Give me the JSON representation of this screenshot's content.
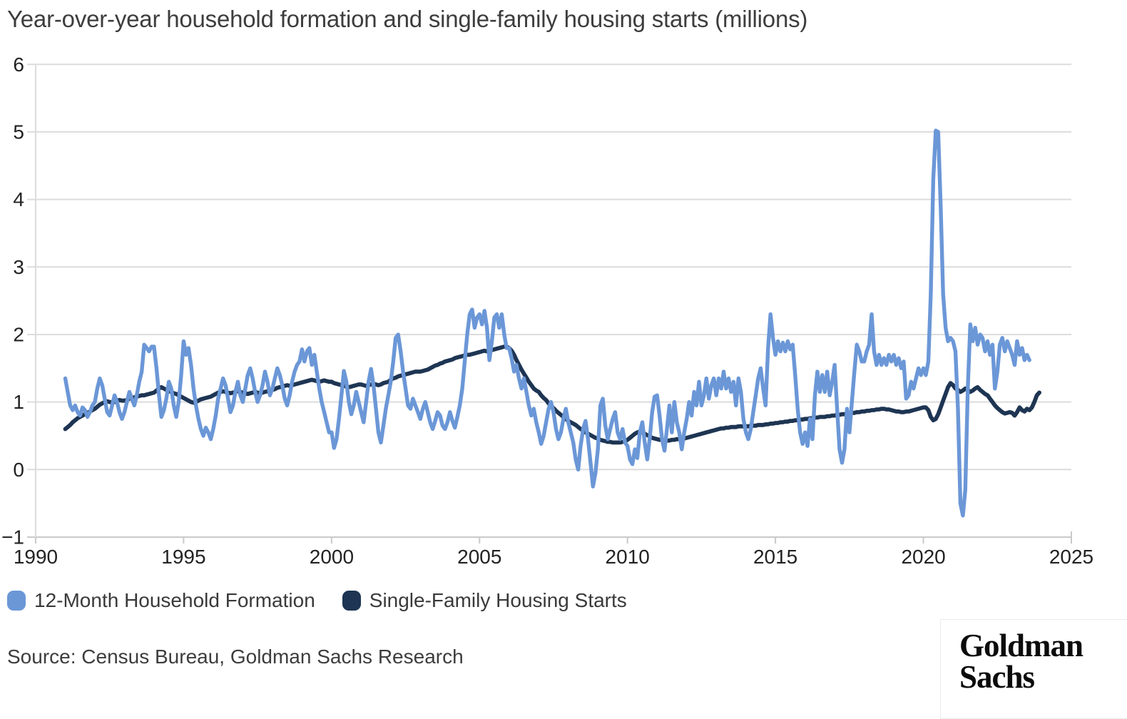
{
  "title": "Year-over-year household formation and single-family housing starts (millions)",
  "source": "Source: Census Bureau, Goldman Sachs Research",
  "logo": {
    "line1": "Goldman",
    "line2": "Sachs"
  },
  "legend": {
    "items": [
      {
        "label": "12-Month Household Formation",
        "color": "#6B97D7"
      },
      {
        "label": "Single-Family Housing Starts",
        "color": "#1E3553"
      }
    ]
  },
  "colors": {
    "grid": "#dcdcdc",
    "axis": "#c9c9c9",
    "tick_label": "#222222",
    "title_text": "#3d3d3d",
    "household_formation": "#6B97D7",
    "housing_starts": "#1E3553"
  },
  "chart_data": {
    "type": "line",
    "title": "Year-over-year household formation and single-family housing starts (millions)",
    "xlabel": "",
    "ylabel": "",
    "xlim": [
      1990,
      2025
    ],
    "ylim": [
      -1,
      6
    ],
    "grid": "horizontal",
    "legend_position": "bottom",
    "x_axis": {
      "ticks": [
        1990,
        1995,
        2000,
        2005,
        2010,
        2015,
        2020,
        2025
      ]
    },
    "y_axis": {
      "ticks": [
        6,
        5,
        4,
        3,
        2,
        1,
        0,
        -1
      ]
    },
    "x_start": 1991.0,
    "x_step": 0.0833333,
    "series": [
      {
        "name": "12-Month Household Formation",
        "color": "#6B97D7",
        "width": 5.4,
        "values": [
          1.35,
          1.15,
          0.95,
          0.88,
          0.95,
          0.85,
          0.8,
          0.92,
          0.88,
          0.78,
          0.85,
          0.95,
          1.0,
          1.2,
          1.35,
          1.25,
          1.05,
          0.85,
          0.8,
          0.95,
          1.1,
          1.0,
          0.85,
          0.75,
          0.85,
          1.0,
          1.15,
          1.05,
          0.95,
          1.1,
          1.3,
          1.45,
          1.85,
          1.8,
          1.75,
          1.82,
          1.82,
          1.5,
          1.1,
          0.78,
          0.88,
          1.05,
          1.3,
          1.2,
          0.95,
          0.78,
          1.0,
          1.4,
          1.9,
          1.7,
          1.8,
          1.55,
          1.2,
          0.95,
          0.75,
          0.6,
          0.5,
          0.62,
          0.55,
          0.45,
          0.6,
          0.8,
          1.05,
          1.2,
          1.35,
          1.25,
          1.05,
          0.85,
          0.95,
          1.15,
          1.3,
          1.1,
          1.0,
          1.2,
          1.4,
          1.5,
          1.35,
          1.15,
          1.0,
          1.1,
          1.25,
          1.45,
          1.3,
          1.1,
          1.2,
          1.35,
          1.5,
          1.4,
          1.25,
          1.05,
          0.95,
          1.1,
          1.3,
          1.45,
          1.55,
          1.6,
          1.78,
          1.6,
          1.75,
          1.8,
          1.55,
          1.7,
          1.45,
          1.2,
          1.0,
          0.85,
          0.7,
          0.55,
          0.55,
          0.32,
          0.45,
          0.75,
          1.1,
          1.46,
          1.3,
          1.0,
          0.82,
          0.95,
          1.15,
          1.0,
          0.85,
          0.7,
          1.0,
          1.3,
          1.49,
          1.25,
          0.9,
          0.55,
          0.4,
          0.65,
          0.9,
          1.1,
          1.3,
          1.6,
          1.95,
          2.0,
          1.75,
          1.45,
          1.2,
          0.95,
          0.9,
          1.05,
          0.95,
          0.85,
          0.75,
          0.9,
          1.0,
          0.85,
          0.7,
          0.6,
          0.72,
          0.85,
          0.8,
          0.65,
          0.6,
          0.7,
          0.85,
          0.72,
          0.62,
          0.78,
          0.95,
          1.2,
          1.6,
          2.0,
          2.3,
          2.37,
          2.1,
          2.25,
          2.3,
          2.15,
          2.35,
          2.1,
          1.62,
          1.9,
          2.25,
          2.3,
          2.1,
          2.3,
          2.0,
          1.8,
          1.8,
          1.65,
          1.45,
          1.55,
          1.35,
          1.2,
          1.35,
          1.15,
          0.95,
          0.8,
          0.9,
          0.7,
          0.55,
          0.38,
          0.5,
          0.7,
          0.9,
          1.0,
          0.85,
          0.6,
          0.45,
          0.55,
          0.75,
          0.9,
          0.7,
          0.55,
          0.4,
          0.15,
          0.0,
          0.35,
          0.6,
          0.72,
          0.45,
          0.1,
          -0.25,
          -0.05,
          0.3,
          0.95,
          1.05,
          0.65,
          0.45,
          0.6,
          0.75,
          0.85,
          0.55,
          0.45,
          0.6,
          0.4,
          0.35,
          0.15,
          0.08,
          0.3,
          0.17,
          0.55,
          0.7,
          0.4,
          0.15,
          0.45,
          0.85,
          1.08,
          1.1,
          0.8,
          0.45,
          0.28,
          0.6,
          0.95,
          0.55,
          1.0,
          0.7,
          0.55,
          0.3,
          0.55,
          0.75,
          1.0,
          0.8,
          1.15,
          0.95,
          1.3,
          0.95,
          1.1,
          1.35,
          1.05,
          1.25,
          1.35,
          1.1,
          1.35,
          1.2,
          1.45,
          1.2,
          1.35,
          1.15,
          1.3,
          0.95,
          1.35,
          1.15,
          0.75,
          0.55,
          0.45,
          0.6,
          0.85,
          1.1,
          1.35,
          1.5,
          1.2,
          0.95,
          1.8,
          2.3,
          1.95,
          1.7,
          1.9,
          1.75,
          1.88,
          1.75,
          1.9,
          1.78,
          1.85,
          1.4,
          0.9,
          0.55,
          0.38,
          0.55,
          0.35,
          0.75,
          0.45,
          1.1,
          1.45,
          1.15,
          1.4,
          1.15,
          1.45,
          1.1,
          1.3,
          1.55,
          0.9,
          0.3,
          0.1,
          0.3,
          0.9,
          0.55,
          1.0,
          1.45,
          1.85,
          1.75,
          1.6,
          1.6,
          1.75,
          1.85,
          2.3,
          1.75,
          1.55,
          1.7,
          1.55,
          1.65,
          1.55,
          1.7,
          1.6,
          1.7,
          1.55,
          1.65,
          1.5,
          1.6,
          1.05,
          1.1,
          1.3,
          1.2,
          1.35,
          1.5,
          1.4,
          1.5,
          1.4,
          1.6,
          2.6,
          4.3,
          5.02,
          5.0,
          3.9,
          2.6,
          2.1,
          1.9,
          1.95,
          1.9,
          1.75,
          0.9,
          -0.5,
          -0.68,
          -0.3,
          1.2,
          2.15,
          1.9,
          2.1,
          1.85,
          2.0,
          1.95,
          1.75,
          1.9,
          1.7,
          1.85,
          1.2,
          1.45,
          1.85,
          1.95,
          1.75,
          1.9,
          1.8,
          1.7,
          1.55,
          1.9,
          1.7,
          1.8,
          1.62,
          1.7,
          1.62
        ]
      },
      {
        "name": "Single-Family Housing Starts",
        "color": "#1E3553",
        "width": 5.8,
        "values": [
          0.6,
          0.63,
          0.66,
          0.7,
          0.73,
          0.76,
          0.78,
          0.8,
          0.82,
          0.84,
          0.86,
          0.88,
          0.9,
          0.93,
          0.96,
          0.98,
          1.0,
          1.01,
          1.0,
          0.99,
          1.0,
          1.02,
          1.03,
          1.02,
          1.02,
          1.03,
          1.05,
          1.06,
          1.07,
          1.08,
          1.09,
          1.1,
          1.1,
          1.11,
          1.12,
          1.13,
          1.14,
          1.17,
          1.2,
          1.22,
          1.2,
          1.18,
          1.16,
          1.15,
          1.13,
          1.12,
          1.1,
          1.08,
          1.06,
          1.04,
          1.02,
          1.0,
          0.99,
          1.0,
          1.02,
          1.04,
          1.05,
          1.06,
          1.07,
          1.08,
          1.1,
          1.12,
          1.14,
          1.15,
          1.16,
          1.15,
          1.14,
          1.13,
          1.14,
          1.15,
          1.16,
          1.15,
          1.14,
          1.13,
          1.12,
          1.13,
          1.14,
          1.15,
          1.14,
          1.13,
          1.14,
          1.15,
          1.16,
          1.17,
          1.18,
          1.19,
          1.21,
          1.22,
          1.23,
          1.24,
          1.25,
          1.24,
          1.25,
          1.26,
          1.27,
          1.28,
          1.29,
          1.3,
          1.31,
          1.32,
          1.33,
          1.32,
          1.31,
          1.3,
          1.31,
          1.32,
          1.31,
          1.3,
          1.3,
          1.28,
          1.27,
          1.26,
          1.25,
          1.24,
          1.23,
          1.22,
          1.23,
          1.24,
          1.25,
          1.26,
          1.26,
          1.25,
          1.24,
          1.25,
          1.26,
          1.27,
          1.26,
          1.25,
          1.26,
          1.28,
          1.29,
          1.3,
          1.33,
          1.35,
          1.36,
          1.38,
          1.39,
          1.4,
          1.41,
          1.42,
          1.43,
          1.44,
          1.45,
          1.45,
          1.45,
          1.46,
          1.47,
          1.48,
          1.5,
          1.52,
          1.54,
          1.55,
          1.57,
          1.58,
          1.6,
          1.61,
          1.62,
          1.63,
          1.65,
          1.66,
          1.67,
          1.68,
          1.69,
          1.7,
          1.7,
          1.71,
          1.72,
          1.73,
          1.74,
          1.75,
          1.76,
          1.75,
          1.76,
          1.77,
          1.78,
          1.79,
          1.8,
          1.81,
          1.82,
          1.82,
          1.8,
          1.76,
          1.7,
          1.62,
          1.55,
          1.48,
          1.42,
          1.36,
          1.3,
          1.25,
          1.2,
          1.17,
          1.15,
          1.1,
          1.06,
          1.03,
          0.98,
          0.94,
          0.91,
          0.87,
          0.84,
          0.81,
          0.78,
          0.75,
          0.72,
          0.7,
          0.68,
          0.66,
          0.63,
          0.6,
          0.58,
          0.55,
          0.53,
          0.51,
          0.49,
          0.47,
          0.46,
          0.44,
          0.43,
          0.42,
          0.41,
          0.41,
          0.4,
          0.4,
          0.4,
          0.4,
          0.41,
          0.42,
          0.44,
          0.47,
          0.5,
          0.53,
          0.55,
          0.56,
          0.55,
          0.53,
          0.51,
          0.49,
          0.47,
          0.46,
          0.45,
          0.44,
          0.44,
          0.43,
          0.43,
          0.43,
          0.44,
          0.44,
          0.45,
          0.45,
          0.46,
          0.46,
          0.47,
          0.48,
          0.49,
          0.5,
          0.51,
          0.52,
          0.53,
          0.54,
          0.55,
          0.56,
          0.57,
          0.58,
          0.59,
          0.6,
          0.61,
          0.61,
          0.62,
          0.62,
          0.63,
          0.63,
          0.63,
          0.64,
          0.64,
          0.64,
          0.64,
          0.64,
          0.65,
          0.65,
          0.65,
          0.66,
          0.66,
          0.66,
          0.67,
          0.67,
          0.68,
          0.68,
          0.69,
          0.69,
          0.7,
          0.7,
          0.71,
          0.71,
          0.72,
          0.72,
          0.73,
          0.73,
          0.74,
          0.74,
          0.75,
          0.75,
          0.76,
          0.76,
          0.77,
          0.77,
          0.78,
          0.78,
          0.78,
          0.79,
          0.79,
          0.8,
          0.8,
          0.81,
          0.81,
          0.82,
          0.82,
          0.83,
          0.83,
          0.84,
          0.84,
          0.85,
          0.85,
          0.86,
          0.86,
          0.87,
          0.87,
          0.88,
          0.88,
          0.89,
          0.89,
          0.9,
          0.9,
          0.89,
          0.89,
          0.88,
          0.87,
          0.86,
          0.86,
          0.85,
          0.85,
          0.86,
          0.86,
          0.87,
          0.88,
          0.89,
          0.9,
          0.91,
          0.92,
          0.92,
          0.88,
          0.78,
          0.73,
          0.75,
          0.82,
          0.92,
          1.02,
          1.12,
          1.22,
          1.28,
          1.25,
          1.2,
          1.18,
          1.15,
          1.17,
          1.2,
          1.18,
          1.15,
          1.17,
          1.2,
          1.22,
          1.18,
          1.15,
          1.12,
          1.1,
          1.05,
          1.0,
          0.95,
          0.91,
          0.88,
          0.85,
          0.83,
          0.84,
          0.85,
          0.84,
          0.8,
          0.85,
          0.92,
          0.88,
          0.86,
          0.9,
          0.88,
          0.92,
          1.0,
          1.1,
          1.14
        ]
      }
    ]
  }
}
